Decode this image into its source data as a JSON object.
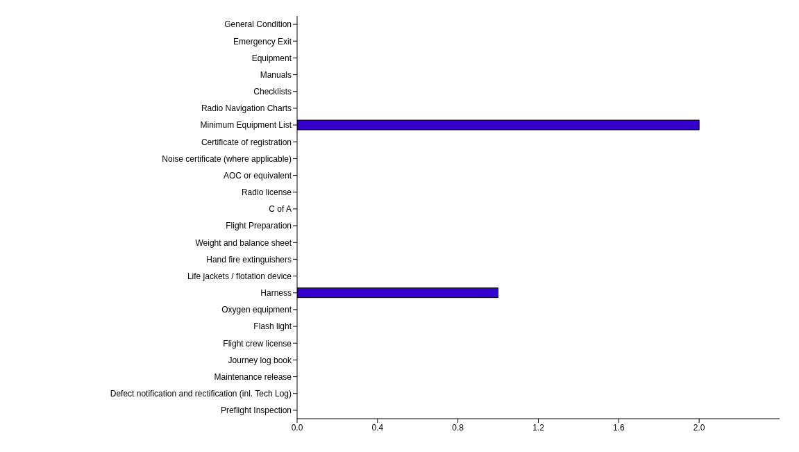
{
  "chart_data": {
    "type": "bar",
    "orientation": "horizontal",
    "categories": [
      "General Condition",
      "Emergency Exit",
      "Equipment",
      "Manuals",
      "Checklists",
      "Radio Navigation Charts",
      "Minimum Equipment List",
      "Certificate of registration",
      "Noise certificate (where applicable)",
      "AOC or equivalent",
      "Radio license",
      "C of A",
      "Flight Preparation",
      "Weight and balance sheet",
      "Hand fire extinguishers",
      "Life jackets / flotation device",
      "Harness",
      "Oxygen equipment",
      "Flash light",
      "Flight crew license",
      "Journey log book",
      "Maintenance release",
      "Defect notification and rectification (inl. Tech Log)",
      "Preflight Inspection"
    ],
    "values": [
      0,
      0,
      0,
      0,
      0,
      0,
      2,
      0,
      0,
      0,
      0,
      0,
      0,
      0,
      0,
      0,
      1,
      0,
      0,
      0,
      0,
      0,
      0,
      0
    ],
    "color": "#3300cc",
    "xlim": [
      0,
      2.4
    ],
    "xticks": [
      {
        "value": 0,
        "label": "0.0"
      },
      {
        "value": 0.4,
        "label": "0.4"
      },
      {
        "value": 0.8,
        "label": "0.8"
      },
      {
        "value": 1.2,
        "label": "1.2"
      },
      {
        "value": 1.6,
        "label": "1.6"
      },
      {
        "value": 2,
        "label": "2.0"
      }
    ],
    "grid": false
  }
}
